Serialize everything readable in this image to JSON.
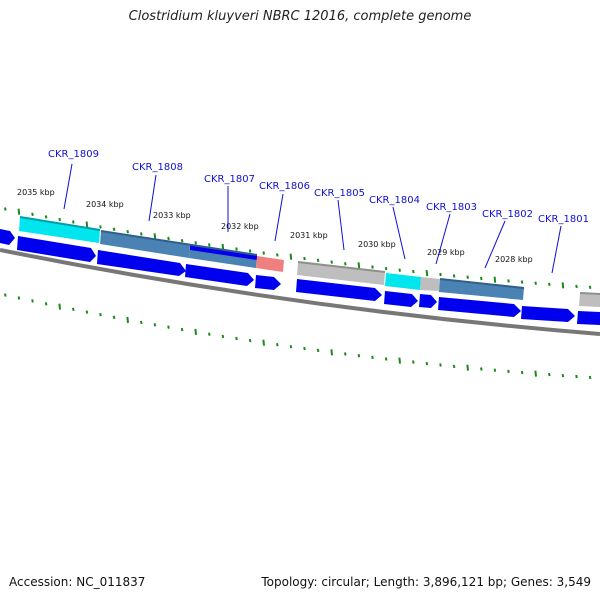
{
  "title": "Clostridium kluyveri NBRC 12016, complete genome",
  "footer": {
    "accession": "Accession: NC_011837",
    "summary": "Topology: circular; Length: 3,896,121 bp; Genes: 3,549"
  },
  "colors": {
    "gene_arrow": "#0000ee",
    "backbone": "#777777",
    "tick": "#1a8a1a",
    "label": "#1010d0",
    "cog_cyan": "#00e5ee",
    "cog_steelblue": "#4a82b4",
    "cog_gray": "#bebebe",
    "cog_salmon": "#f08080"
  },
  "kbp_labels": [
    "2035 kbp",
    "2034 kbp",
    "2033 kbp",
    "2032 kbp",
    "2031 kbp",
    "2030 kbp",
    "2029 kbp",
    "2028 kbp"
  ],
  "genes": [
    {
      "id": "CKR_1809",
      "cog_color": "cyan"
    },
    {
      "id": "CKR_1808",
      "cog_color": "steelblue"
    },
    {
      "id": "CKR_1807",
      "cog_color": "blue"
    },
    {
      "id": "CKR_1806",
      "cog_color": "salmon"
    },
    {
      "id": "CKR_1805",
      "cog_color": "gray"
    },
    {
      "id": "CKR_1804",
      "cog_color": "cyan"
    },
    {
      "id": "CKR_1803",
      "cog_color": "gray"
    },
    {
      "id": "CKR_1802",
      "cog_color": "steelblue"
    },
    {
      "id": "CKR_1801",
      "cog_color": "gray"
    }
  ]
}
